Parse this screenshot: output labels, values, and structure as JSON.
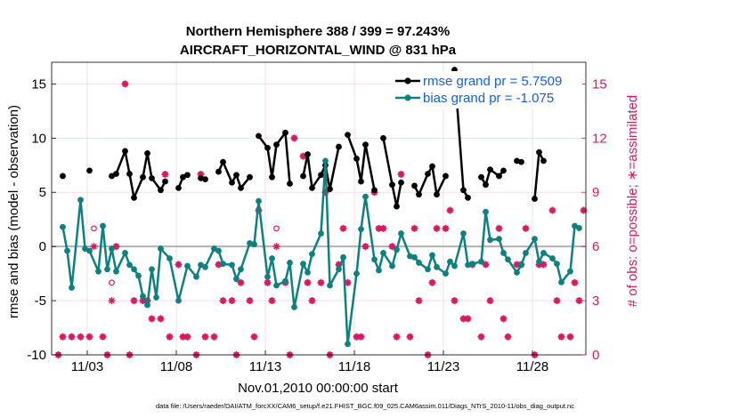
{
  "chart_data": {
    "type": "line",
    "title_line1": "Northern Hemisphere 388 / 399 = 97.243%",
    "title_line2": "AIRCRAFT_HORIZONTAL_WIND @ 831 hPa",
    "xlabel": "Nov.01,2010 00:00:00 start",
    "ylabel_left": "rmse and bias (model - observation)",
    "ylabel_right": "# of obs: o=possible; ∗=assimilated",
    "footer": "data file: /Users/raeder/DAI/ATM_forcXX/CAM6_setup/f.e21.FHIST_BGC.f09_025.CAM6assim.011/Diags_NTrS_2010-11/obs_diag_output.nc",
    "x_range": [
      1.0,
      31.0
    ],
    "ylim_left": [
      -10,
      17
    ],
    "ylim_right": [
      0,
      16.2
    ],
    "x_ticks": [
      {
        "value": 3,
        "label": "11/03"
      },
      {
        "value": 8,
        "label": "11/08"
      },
      {
        "value": 13,
        "label": "11/13"
      },
      {
        "value": 18,
        "label": "11/18"
      },
      {
        "value": 23,
        "label": "11/23"
      },
      {
        "value": 28,
        "label": "11/28"
      }
    ],
    "y_ticks_left": [
      -10,
      -5,
      0,
      5,
      10,
      15
    ],
    "y_ticks_right": [
      0,
      3,
      6,
      9,
      12,
      15
    ],
    "grid": true,
    "legend_position": "top-right",
    "colors": {
      "rmse": "#000000",
      "bias": "#0e8080",
      "obs": "#d81860",
      "legend_text": "#1560d8",
      "zero_line": "#b0b0b0"
    },
    "series": [
      {
        "name": "rmse grand pr = 5.7509",
        "key": "rmse",
        "x": [
          1.625,
          2.125,
          3.125,
          4.125,
          4.375,
          4.625,
          5.125,
          5.375,
          5.625,
          6.125,
          6.375,
          6.625,
          7.125,
          7.375,
          7.625,
          8.125,
          8.375,
          8.625,
          9.125,
          9.375,
          9.625,
          10.125,
          10.375,
          10.625,
          11.125,
          11.375,
          11.625,
          12.125,
          12.375,
          12.625,
          13.125,
          13.375,
          13.625,
          14.125,
          14.375,
          14.625,
          15.125,
          15.375,
          15.625,
          16.125,
          16.375,
          16.625,
          17.125,
          17.375,
          17.625,
          18.125,
          18.375,
          18.625,
          19.125,
          19.375,
          19.625,
          20.125,
          20.375,
          20.625,
          21.125,
          21.375,
          21.625,
          22.125,
          22.375,
          22.625,
          23.125,
          23.375,
          23.625,
          24.125,
          24.375,
          24.625,
          25.125,
          25.375,
          25.625,
          26.125,
          26.375,
          26.625,
          27.125,
          27.375,
          27.625,
          28.125,
          28.375,
          28.625,
          29.125,
          29.375,
          29.625,
          30.125,
          30.375,
          30.625
        ],
        "values": [
          6.5,
          null,
          7.0,
          null,
          6.5,
          6.7,
          8.8,
          6.7,
          4.5,
          6.4,
          8.6,
          6.3,
          5.2,
          6.0,
          null,
          5.4,
          6.4,
          6.6,
          null,
          6.3,
          6.2,
          null,
          6.9,
          7.8,
          5.9,
          6.6,
          5.4,
          6.4,
          null,
          10.2,
          9.1,
          6.4,
          9.4,
          10.5,
          5.8,
          null,
          6.5,
          8.5,
          5.4,
          6.6,
          7.5,
          5.3,
          9.2,
          null,
          10.3,
          8.1,
          6.0,
          9.4,
          5.2,
          null,
          10.0,
          5.7,
          3.7,
          5.9,
          null,
          5.6,
          4.8,
          6.7,
          7.4,
          4.8,
          6.5,
          null,
          16.3,
          5.2,
          4.5,
          null,
          6.4,
          5.7,
          7.1,
          6.5,
          7.0,
          null,
          7.9,
          7.8,
          null,
          4.4,
          8.7,
          7.9,
          null,
          null,
          null,
          null,
          null,
          null
        ]
      },
      {
        "name": "bias grand pr = -1.075",
        "key": "bias",
        "x": [
          1.625,
          1.875,
          2.125,
          2.625,
          2.875,
          3.125,
          3.625,
          3.875,
          4.125,
          4.375,
          4.625,
          5.125,
          5.375,
          5.625,
          5.875,
          6.125,
          6.375,
          6.625,
          6.875,
          7.125,
          7.625,
          8.125,
          8.625,
          9.125,
          9.375,
          9.625,
          10.125,
          10.375,
          10.625,
          11.125,
          11.375,
          11.625,
          12.125,
          12.375,
          12.625,
          13.125,
          13.375,
          13.625,
          14.125,
          14.375,
          14.625,
          15.125,
          15.375,
          15.625,
          16.125,
          16.375,
          16.625,
          17.125,
          17.375,
          17.625,
          18.125,
          18.375,
          18.625,
          19.125,
          19.375,
          19.625,
          20.125,
          20.375,
          20.625,
          21.125,
          21.375,
          21.625,
          22.125,
          22.375,
          22.625,
          23.125,
          23.375,
          23.625,
          24.125,
          24.375,
          24.625,
          25.125,
          25.375,
          25.625,
          26.125,
          26.375,
          26.625,
          27.125,
          27.375,
          27.625,
          28.125,
          28.375,
          28.625,
          29.125,
          29.375,
          29.625,
          30.125,
          30.375,
          30.625
        ],
        "values": [
          1.8,
          -0.4,
          -3.8,
          4.3,
          -0.2,
          -0.4,
          -2.3,
          1.9,
          -2.1,
          -0.2,
          -2.3,
          -0.6,
          -1.7,
          -2.1,
          -2.7,
          -4.6,
          -5.4,
          -2.1,
          -4.7,
          -0.2,
          -1.1,
          -5.0,
          -1.8,
          -2.8,
          -1.7,
          -1.9,
          -0.2,
          -0.4,
          -1.6,
          -1.7,
          -3.0,
          -2.1,
          0.3,
          0.2,
          4.2,
          -2.8,
          -1.1,
          -3.6,
          -3.2,
          -1.5,
          -5.6,
          -1.6,
          -2.4,
          -0.7,
          1.2,
          7.9,
          -3.6,
          -2.1,
          -1.0,
          -9.0,
          -2.5,
          1.6,
          4.6,
          -1.2,
          -2.2,
          -0.6,
          -1.8,
          -0.3,
          1.2,
          -0.9,
          -1.0,
          -1.5,
          -2.1,
          -0.8,
          -1.9,
          -2.5,
          -1.4,
          -1.8,
          1.2,
          -1.7,
          -1.6,
          -1.4,
          3.2,
          0.6,
          0.7,
          -0.6,
          -1.2,
          -2.4,
          -1.7,
          -0.6,
          0.7,
          -1.4,
          -0.6,
          -1.1,
          -1.6,
          -3.3,
          -2.3,
          1.9,
          1.7
        ]
      }
    ],
    "obs_possible": {
      "x": [
        1.375,
        1.625,
        2.125,
        2.625,
        3.125,
        3.375,
        3.875,
        4.125,
        4.375,
        4.625,
        5.125,
        5.375,
        5.625,
        6.125,
        6.375,
        6.625,
        7.125,
        7.375,
        7.625,
        8.125,
        8.375,
        8.625,
        9.125,
        9.375,
        9.625,
        10.125,
        10.375,
        10.625,
        11.125,
        11.375,
        11.625,
        12.125,
        12.375,
        12.625,
        13.125,
        13.375,
        13.625,
        14.125,
        14.375,
        14.625,
        15.125,
        15.375,
        15.625,
        16.125,
        16.375,
        16.625,
        17.125,
        17.375,
        17.625,
        18.125,
        18.375,
        18.625,
        19.125,
        19.375,
        19.625,
        20.125,
        20.375,
        20.625,
        21.125,
        21.375,
        21.625,
        22.125,
        22.375,
        22.625,
        23.125,
        23.375,
        23.625,
        24.125,
        24.375,
        24.625,
        25.125,
        25.375,
        25.625,
        26.125,
        26.375,
        26.625,
        27.125,
        27.375,
        27.625,
        28.125,
        28.375,
        28.625,
        29.125,
        29.375,
        29.625,
        30.125,
        30.375,
        30.625,
        30.875
      ],
      "values": [
        0,
        1,
        1,
        1,
        1,
        7,
        1,
        0,
        4,
        6,
        15,
        0,
        3,
        3,
        3,
        2,
        2,
        10,
        1,
        5,
        1,
        1,
        0,
        10,
        1,
        1,
        5,
        3,
        3,
        0,
        4,
        3,
        1,
        8,
        4,
        3,
        7,
        4,
        0,
        12,
        11,
        4,
        3,
        4,
        9,
        0,
        5,
        7,
        4,
        1,
        1,
        6,
        9,
        7,
        7,
        6,
        1,
        10,
        1,
        7,
        3,
        0,
        4,
        7,
        7,
        8,
        3,
        2,
        2,
        5,
        1,
        5,
        3,
        7,
        2,
        1,
        5,
        5,
        7,
        0,
        5,
        5,
        8,
        3,
        1,
        1,
        4,
        3,
        8
      ]
    },
    "obs_assimilated": {
      "x": [
        1.375,
        1.625,
        2.125,
        2.625,
        3.125,
        3.375,
        3.875,
        4.125,
        4.375,
        4.625,
        5.125,
        5.375,
        5.625,
        6.125,
        6.375,
        6.625,
        7.125,
        7.375,
        7.625,
        8.125,
        8.375,
        8.625,
        9.125,
        9.375,
        9.625,
        10.125,
        10.375,
        10.625,
        11.125,
        11.375,
        11.625,
        12.125,
        12.375,
        12.625,
        13.125,
        13.375,
        13.625,
        14.125,
        14.375,
        14.625,
        15.125,
        15.375,
        15.625,
        16.125,
        16.375,
        16.625,
        17.125,
        17.375,
        17.625,
        18.125,
        18.375,
        18.625,
        19.125,
        19.375,
        19.625,
        20.125,
        20.375,
        20.625,
        21.125,
        21.375,
        21.625,
        22.125,
        22.375,
        22.625,
        23.125,
        23.375,
        23.625,
        24.125,
        24.375,
        24.625,
        25.125,
        25.375,
        25.625,
        26.125,
        26.375,
        26.625,
        27.125,
        27.375,
        27.625,
        28.125,
        28.375,
        28.625,
        29.125,
        29.375,
        29.625,
        30.125,
        30.375,
        30.625,
        30.875
      ],
      "values": [
        0,
        1,
        1,
        1,
        1,
        6,
        1,
        0,
        3,
        6,
        15,
        0,
        3,
        3,
        3,
        2,
        2,
        10,
        1,
        5,
        1,
        1,
        0,
        10,
        1,
        1,
        5,
        3,
        3,
        0,
        4,
        3,
        1,
        8,
        4,
        3,
        6,
        4,
        0,
        12,
        11,
        4,
        3,
        4,
        9,
        0,
        5,
        7,
        4,
        1,
        1,
        6,
        9,
        7,
        7,
        6,
        1,
        10,
        1,
        7,
        3,
        0,
        4,
        7,
        7,
        8,
        3,
        2,
        2,
        5,
        1,
        5,
        3,
        7,
        2,
        1,
        5,
        5,
        7,
        0,
        5,
        5,
        8,
        3,
        1,
        1,
        4,
        3,
        8
      ]
    }
  }
}
